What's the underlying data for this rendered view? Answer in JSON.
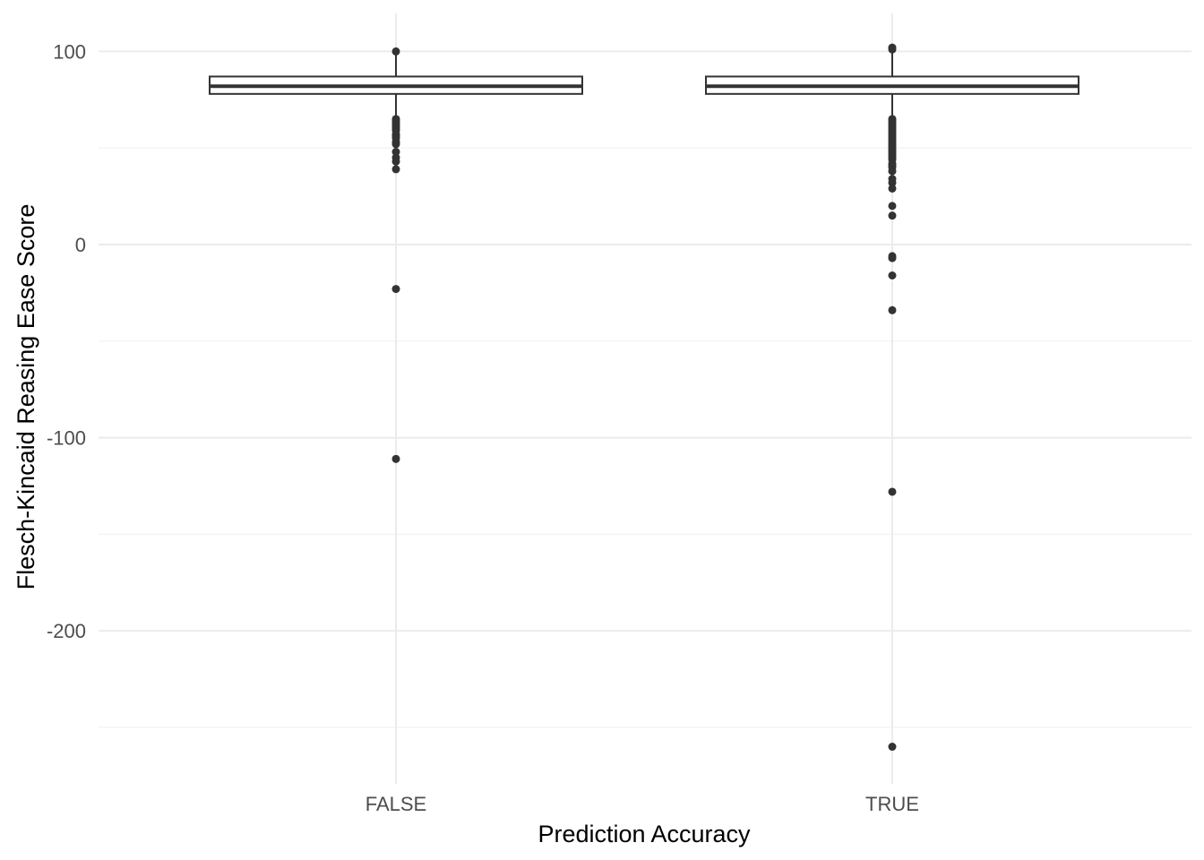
{
  "chart_data": {
    "type": "boxplot",
    "xlabel": "Prediction Accuracy",
    "ylabel": "Flesch-Kincaid Reasing Ease Score",
    "categories": [
      "FALSE",
      "TRUE"
    ],
    "ylim": [
      -275,
      120
    ],
    "yticks": [
      100,
      0,
      -100,
      -200
    ],
    "ytick_labels": [
      "100",
      "0",
      "-100",
      "-200"
    ],
    "grid": true,
    "colors": {
      "box": "#333333",
      "grid": "#ebebeb",
      "text": "#4d4d4d"
    },
    "boxes": [
      {
        "category": "FALSE",
        "whisker_low": 65,
        "q1": 78,
        "median": 82,
        "q3": 87,
        "whisker_high": 100,
        "outliers": [
          100,
          65,
          64,
          63,
          62,
          61,
          60,
          59,
          57,
          56,
          55,
          53,
          52,
          48,
          45,
          43,
          39,
          -23,
          -111
        ]
      },
      {
        "category": "TRUE",
        "whisker_low": 65,
        "q1": 78,
        "median": 82,
        "q3": 87,
        "whisker_high": 102,
        "outliers": [
          102,
          101,
          65,
          64,
          63,
          62,
          61,
          60,
          59,
          58,
          57,
          56,
          55,
          54,
          53,
          52,
          51,
          50,
          49,
          48,
          47,
          46,
          45,
          44,
          42,
          41,
          40,
          38,
          34,
          32,
          29,
          20,
          15,
          -6,
          -7,
          -16,
          -34,
          -128,
          -260
        ]
      }
    ]
  }
}
